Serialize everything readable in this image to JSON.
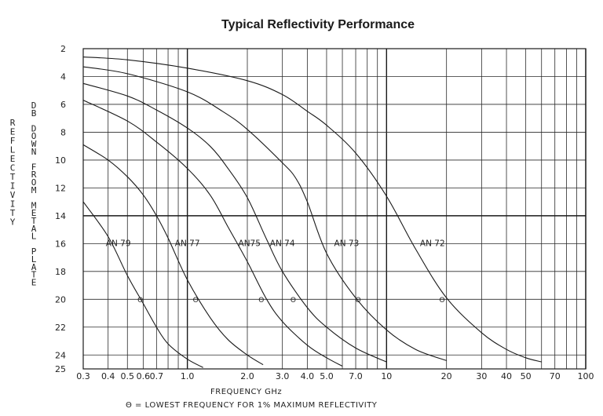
{
  "chart_data": {
    "type": "line",
    "title": "Typical Reflectivity Performance",
    "xlabel": "FREQUENCY GHz",
    "footnote": "Θ = LOWEST FREQUENCY FOR 1% MAXIMUM REFLECTIVITY",
    "ylabel_outer": "REFLECTIVITY",
    "ylabel_inner": "DB DOWN FROM METAL PLATE",
    "x_scale": "log",
    "xlim": [
      0.3,
      100
    ],
    "ylim": [
      2,
      25
    ],
    "y_inverted": true,
    "x_ticks": [
      "0.3",
      "0.4",
      "0.5",
      "0.6",
      "0.7",
      "1.0",
      "2.0",
      "3.0",
      "4.0",
      "5.0",
      "7.0",
      "10",
      "20",
      "30",
      "40",
      "50",
      "70",
      "100"
    ],
    "x_tick_values": [
      0.3,
      0.4,
      0.5,
      0.6,
      0.7,
      1.0,
      2.0,
      3.0,
      4.0,
      5.0,
      7.0,
      10,
      20,
      30,
      40,
      50,
      70,
      100
    ],
    "y_ticks": [
      "2",
      "4",
      "6",
      "8",
      "10",
      "12",
      "14",
      "16",
      "18",
      "20",
      "22",
      "24",
      "25"
    ],
    "y_tick_values": [
      2,
      4,
      6,
      8,
      10,
      12,
      14,
      16,
      18,
      20,
      22,
      24,
      25
    ],
    "grid": true,
    "marker_symbol": "Θ",
    "series": [
      {
        "name": "AN 79",
        "x": [
          0.3,
          0.4,
          0.5,
          0.6,
          0.7,
          0.8,
          1.0,
          1.2
        ],
        "y": [
          13.0,
          15.5,
          18.3,
          20.3,
          22.0,
          23.2,
          24.3,
          24.9
        ],
        "marker": [
          0.58,
          20.0
        ],
        "label_at": [
          0.45,
          16.0
        ]
      },
      {
        "name": "AN 77",
        "x": [
          0.3,
          0.4,
          0.5,
          0.6,
          0.7,
          0.8,
          1.0,
          1.3,
          1.6,
          2.0,
          2.4
        ],
        "y": [
          8.9,
          10.0,
          11.2,
          12.5,
          14.0,
          15.6,
          18.6,
          21.3,
          22.9,
          24.0,
          24.7
        ],
        "marker": [
          1.1,
          20.0
        ],
        "label_at": [
          1.0,
          16.0
        ]
      },
      {
        "name": "AN75",
        "x": [
          0.3,
          0.5,
          0.7,
          1.0,
          1.3,
          1.6,
          2.0,
          2.5,
          3.0,
          4.0,
          5.0,
          6.0
        ],
        "y": [
          5.7,
          7.2,
          8.7,
          10.6,
          12.5,
          14.8,
          17.3,
          20.0,
          21.6,
          23.3,
          24.2,
          24.8
        ],
        "marker": [
          2.35,
          20.0
        ],
        "label_at": [
          2.05,
          16.0
        ]
      },
      {
        "name": "AN 74",
        "x": [
          0.3,
          0.5,
          0.7,
          1.0,
          1.3,
          1.6,
          2.0,
          2.5,
          3.0,
          4.0,
          5.0,
          7.0,
          10
        ],
        "y": [
          4.5,
          5.4,
          6.4,
          7.7,
          9.0,
          10.6,
          12.7,
          15.7,
          18.0,
          20.6,
          22.0,
          23.5,
          24.5
        ],
        "marker": [
          3.4,
          20.0
        ],
        "label_at": [
          3.0,
          16.0
        ]
      },
      {
        "name": "AN 73",
        "x": [
          0.3,
          0.5,
          1.0,
          1.5,
          2.0,
          3.0,
          3.5,
          4.0,
          5.0,
          7.0,
          10,
          14,
          20
        ],
        "y": [
          3.3,
          3.8,
          5.1,
          6.5,
          7.8,
          10.2,
          11.3,
          13.0,
          16.7,
          19.9,
          22.2,
          23.6,
          24.4
        ],
        "marker": [
          7.2,
          20.0
        ],
        "label_at": [
          6.3,
          16.0
        ]
      },
      {
        "name": "AN 72",
        "x": [
          0.3,
          0.5,
          1.0,
          2.0,
          3.0,
          4.0,
          5.0,
          7.0,
          10,
          14,
          20,
          30,
          40,
          50,
          60
        ],
        "y": [
          2.6,
          2.8,
          3.4,
          4.3,
          5.3,
          6.5,
          7.5,
          9.5,
          12.6,
          16.4,
          19.9,
          22.4,
          23.6,
          24.2,
          24.5
        ],
        "marker": [
          19.0,
          20.0
        ],
        "label_at": [
          17.0,
          16.0
        ]
      }
    ]
  }
}
